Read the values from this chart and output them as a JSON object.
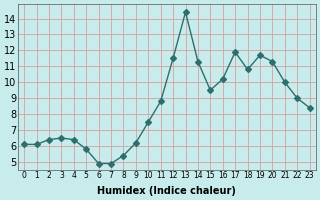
{
  "x": [
    0,
    1,
    2,
    3,
    4,
    5,
    6,
    7,
    8,
    9,
    10,
    11,
    12,
    13,
    14,
    15,
    16,
    17,
    18,
    19,
    20,
    21,
    22,
    23
  ],
  "y": [
    6.1,
    6.1,
    6.4,
    6.5,
    6.4,
    5.8,
    4.9,
    4.9,
    5.4,
    6.2,
    7.5,
    8.8,
    11.5,
    14.4,
    11.3,
    9.5,
    10.2,
    11.9,
    10.8,
    11.7,
    11.3,
    10.0,
    9.0,
    8.4
  ],
  "xlabel": "Humidex (Indice chaleur)",
  "ylabel": "",
  "ylim": [
    4.5,
    14.9
  ],
  "xlim": [
    -0.5,
    23.5
  ],
  "yticks": [
    5,
    6,
    7,
    8,
    9,
    10,
    11,
    12,
    13,
    14
  ],
  "xticks": [
    0,
    1,
    2,
    3,
    4,
    5,
    6,
    7,
    8,
    9,
    10,
    11,
    12,
    13,
    14,
    15,
    16,
    17,
    18,
    19,
    20,
    21,
    22,
    23
  ],
  "xtick_labels": [
    "0",
    "1",
    "2",
    "3",
    "4",
    "5",
    "6",
    "7",
    "8",
    "9",
    "10",
    "11",
    "12",
    "13",
    "14",
    "15",
    "16",
    "17",
    "18",
    "19",
    "20",
    "21",
    "22",
    "23"
  ],
  "line_color": "#2d6e6e",
  "marker": "D",
  "marker_size": 3,
  "background_color": "#c8ecec",
  "grid_color": "#d4a0a0"
}
